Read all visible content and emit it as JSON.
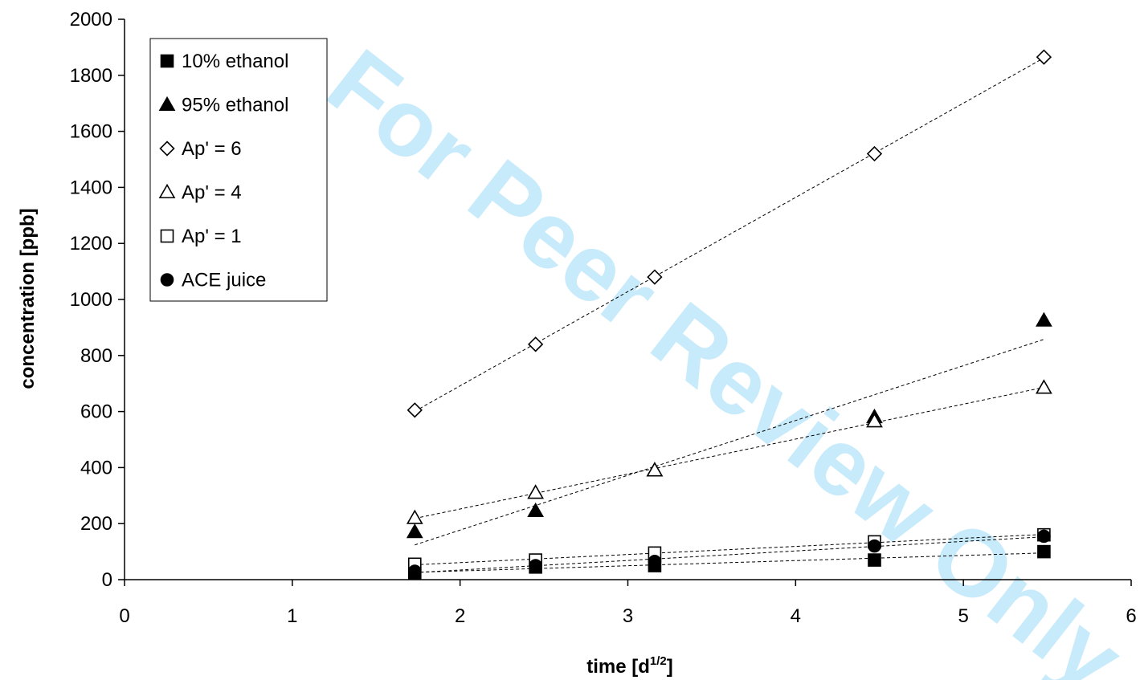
{
  "watermark": "For Peer Review Only",
  "chart_data": {
    "type": "scatter",
    "title": "",
    "xlabel": "time [d",
    "xlabel_sup": "1/2",
    "xlabel_end": "]",
    "ylabel": "concentration [ppb]",
    "xlim": [
      0,
      6
    ],
    "ylim": [
      0,
      2000
    ],
    "x_ticks": [
      "0",
      "1",
      "2",
      "3",
      "4",
      "5",
      "6"
    ],
    "y_ticks": [
      "0",
      "200",
      "400",
      "600",
      "800",
      "1000",
      "1200",
      "1400",
      "1600",
      "1800",
      "2000"
    ],
    "grid": false,
    "legend_position": "top-left",
    "trendlines": "linear, dashed",
    "series": [
      {
        "name": "10% ethanol",
        "marker": "square-filled",
        "x": [
          1.73,
          2.45,
          3.16,
          4.47,
          5.48
        ],
        "y": [
          25,
          45,
          50,
          70,
          100
        ]
      },
      {
        "name": "95% ethanol",
        "marker": "triangle-filled",
        "x": [
          1.73,
          2.45,
          3.16,
          4.47,
          5.48
        ],
        "y": [
          170,
          245,
          390,
          580,
          925
        ]
      },
      {
        "name": "Ap' = 6",
        "marker": "diamond-open",
        "x": [
          1.73,
          2.45,
          3.16,
          4.47,
          5.48
        ],
        "y": [
          605,
          840,
          1080,
          1520,
          1865
        ]
      },
      {
        "name": "Ap' = 4",
        "marker": "triangle-open",
        "x": [
          1.73,
          2.45,
          3.16,
          4.47,
          5.48
        ],
        "y": [
          220,
          310,
          390,
          565,
          685
        ]
      },
      {
        "name": "Ap' = 1",
        "marker": "square-open",
        "x": [
          1.73,
          2.45,
          3.16,
          4.47,
          5.48
        ],
        "y": [
          55,
          70,
          95,
          135,
          160
        ]
      },
      {
        "name": "ACE juice",
        "marker": "circle-filled",
        "x": [
          1.73,
          2.45,
          3.16,
          4.47,
          5.48
        ],
        "y": [
          30,
          50,
          65,
          120,
          155
        ]
      }
    ]
  }
}
